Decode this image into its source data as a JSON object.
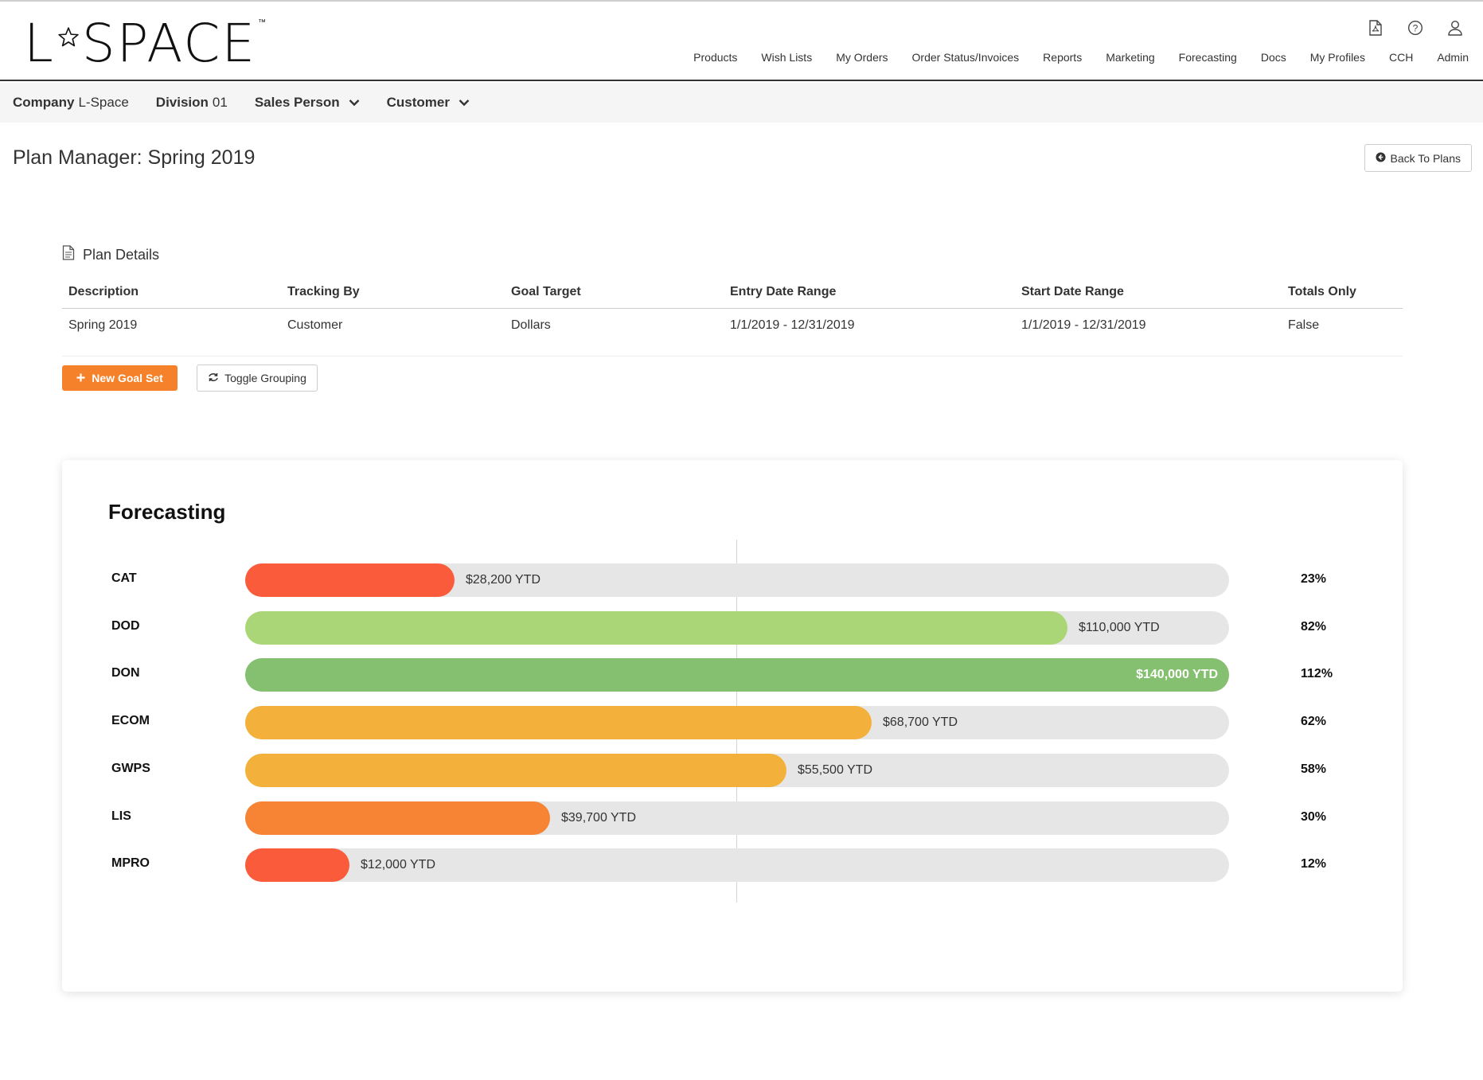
{
  "header": {
    "logo_left": "L",
    "logo_right": "SPACE",
    "logo_tm": "™",
    "icons": [
      "pdf-icon",
      "help-icon",
      "user-icon"
    ],
    "nav": [
      "Products",
      "Wish Lists",
      "My Orders",
      "Order Status/Invoices",
      "Reports",
      "Marketing",
      "Forecasting",
      "Docs",
      "My Profiles",
      "CCH",
      "Admin"
    ]
  },
  "subbar": {
    "company_label": "Company",
    "company_value": "L-Space",
    "division_label": "Division",
    "division_value": "01",
    "salesperson_label": "Sales Person",
    "customer_label": "Customer"
  },
  "page": {
    "title": "Plan Manager: Spring 2019",
    "back_label": "Back To Plans"
  },
  "plan_details": {
    "heading": "Plan Details",
    "columns": [
      "Description",
      "Tracking By",
      "Goal Target",
      "Entry Date Range",
      "Start Date Range",
      "Totals Only"
    ],
    "row": [
      "Spring 2019",
      "Customer",
      "Dollars",
      "1/1/2019 - 12/31/2019",
      "1/1/2019 - 12/31/2019",
      "False"
    ]
  },
  "actions": {
    "new_goal_set": "New Goal Set",
    "toggle_grouping": "Toggle Grouping"
  },
  "forecast": {
    "title": "Forecasting"
  },
  "chart_data": {
    "type": "bar",
    "orientation": "horizontal",
    "categories": [
      "CAT",
      "DOD",
      "DON",
      "ECOM",
      "GWPS",
      "LIS",
      "MPRO"
    ],
    "values": [
      28200,
      110000,
      140000,
      68700,
      55500,
      39700,
      12000
    ],
    "value_labels": [
      "$28,200 YTD",
      "$110,000 YTD",
      "$140,000 YTD",
      "$68,700 YTD",
      "$55,500 YTD",
      "$39,700 YTD",
      "$12,000 YTD"
    ],
    "percent_labels": [
      "23%",
      "82%",
      "112%",
      "62%",
      "58%",
      "30%",
      "12%"
    ],
    "fill_fraction": [
      0.213,
      0.836,
      1.0,
      0.637,
      0.55,
      0.31,
      0.106
    ],
    "colors": [
      "#fa5c3b",
      "#abd677",
      "#84c06f",
      "#f3b13b",
      "#f3b13b",
      "#f78434",
      "#fa5c3b"
    ],
    "track_color": "#e6e6e6",
    "label_inside": [
      false,
      false,
      true,
      false,
      false,
      false,
      false
    ],
    "reference_line": true
  }
}
